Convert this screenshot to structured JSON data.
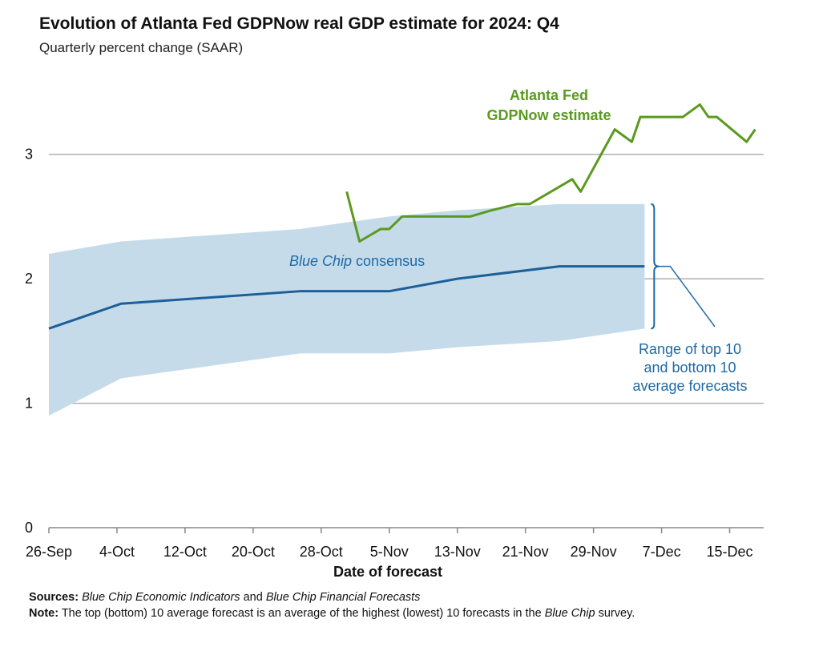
{
  "title": "Evolution of Atlanta Fed GDPNow real GDP estimate for 2024: Q4",
  "subtitle": "Quarterly percent change (SAAR)",
  "colors": {
    "gdpnow": "#5a9a1e",
    "consensus": "#1d5f98",
    "band": "#c5dbea",
    "annotation": "#1d6aa6",
    "grid": "#b0b0b0"
  },
  "chart_data": {
    "type": "line",
    "xlabel": "Date of forecast",
    "ylabel": "",
    "ylim": [
      0,
      3.5
    ],
    "xlim": [
      0,
      84
    ],
    "yticks": [
      0,
      1,
      2,
      3
    ],
    "xticks": [
      {
        "x": 0,
        "label": "26-Sep"
      },
      {
        "x": 8,
        "label": "4-Oct"
      },
      {
        "x": 16,
        "label": "12-Oct"
      },
      {
        "x": 24,
        "label": "20-Oct"
      },
      {
        "x": 32,
        "label": "28-Oct"
      },
      {
        "x": 40,
        "label": "5-Nov"
      },
      {
        "x": 48,
        "label": "13-Nov"
      },
      {
        "x": 56,
        "label": "21-Nov"
      },
      {
        "x": 64,
        "label": "29-Nov"
      },
      {
        "x": 72,
        "label": "7-Dec"
      },
      {
        "x": 80,
        "label": "15-Dec"
      }
    ],
    "grid": true,
    "series": [
      {
        "name": "Atlanta Fed GDPNow estimate",
        "x": [
          35,
          36.5,
          39,
          40,
          41.5,
          44,
          49.5,
          52,
          55,
          56.5,
          61.5,
          62.5,
          66.5,
          68.5,
          69.5,
          72.5,
          74.5,
          76.5,
          77.5,
          78.5,
          82,
          83
        ],
        "y": [
          2.7,
          2.3,
          2.4,
          2.4,
          2.5,
          2.5,
          2.5,
          2.55,
          2.6,
          2.6,
          2.8,
          2.7,
          3.2,
          3.1,
          3.3,
          3.3,
          3.3,
          3.4,
          3.3,
          3.3,
          3.1,
          3.2
        ]
      },
      {
        "name": "Blue Chip consensus",
        "x": [
          0,
          8.5,
          29.5,
          40,
          48,
          60,
          70
        ],
        "y": [
          1.6,
          1.8,
          1.9,
          1.9,
          2.0,
          2.1,
          2.1
        ]
      }
    ],
    "band": {
      "name": "Range of top 10 and bottom 10 average forecasts",
      "x": [
        0,
        8.5,
        29.5,
        40,
        48,
        60,
        70
      ],
      "upper": [
        2.2,
        2.3,
        2.4,
        2.5,
        2.55,
        2.6,
        2.6
      ],
      "lower": [
        0.9,
        1.2,
        1.4,
        1.4,
        1.45,
        1.5,
        1.6
      ]
    },
    "annotations": {
      "gdpnow_line1": "Atlanta Fed",
      "gdpnow_line2": "GDPNow estimate",
      "consensus_italic": "Blue Chip",
      "consensus_rest": " consensus",
      "range_line1": "Range of top 10",
      "range_line2": "and bottom 10",
      "range_line3": "average forecasts"
    }
  },
  "notes": {
    "sources_label": "Sources:",
    "sources_italic_1": "Blue Chip Economic Indicators",
    "sources_and": " and ",
    "sources_italic_2": "Blue Chip Financial Forecasts",
    "note_label": "Note:",
    "note_text": " The top (bottom) 10 average forecast is an average of the highest (lowest) 10 forecasts in the ",
    "note_italic": "Blue Chip",
    "note_end": " survey."
  }
}
